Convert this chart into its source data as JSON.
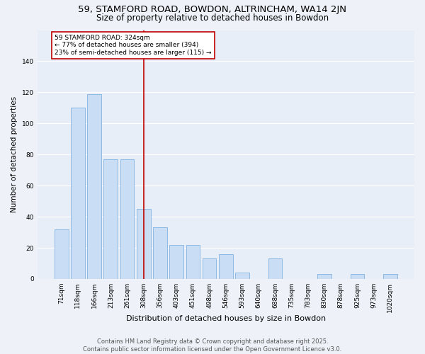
{
  "title": "59, STAMFORD ROAD, BOWDON, ALTRINCHAM, WA14 2JN",
  "subtitle": "Size of property relative to detached houses in Bowdon",
  "xlabel": "Distribution of detached houses by size in Bowdon",
  "ylabel": "Number of detached properties",
  "categories": [
    "71sqm",
    "118sqm",
    "166sqm",
    "213sqm",
    "261sqm",
    "308sqm",
    "356sqm",
    "403sqm",
    "451sqm",
    "498sqm",
    "546sqm",
    "593sqm",
    "640sqm",
    "688sqm",
    "735sqm",
    "783sqm",
    "830sqm",
    "878sqm",
    "925sqm",
    "973sqm",
    "1020sqm"
  ],
  "values": [
    32,
    110,
    119,
    77,
    77,
    45,
    33,
    22,
    22,
    13,
    16,
    4,
    0,
    13,
    0,
    0,
    3,
    0,
    3,
    0,
    3
  ],
  "bar_color": "#c9ddf5",
  "bar_edge_color": "#6fa8dc",
  "vline_color": "#c00000",
  "annotation_text": "59 STAMFORD ROAD: 324sqm\n← 77% of detached houses are smaller (394)\n23% of semi-detached houses are larger (115) →",
  "annotation_box_color": "#ffffff",
  "annotation_box_edge": "#c00000",
  "ylim": [
    0,
    160
  ],
  "yticks": [
    0,
    20,
    40,
    60,
    80,
    100,
    120,
    140
  ],
  "footer": "Contains HM Land Registry data © Crown copyright and database right 2025.\nContains public sector information licensed under the Open Government Licence v3.0.",
  "bg_color": "#eef2f8",
  "plot_bg_color": "#e8eef8",
  "grid_color": "#ffffff",
  "title_fontsize": 9.5,
  "subtitle_fontsize": 8.5,
  "axis_label_fontsize": 7.5,
  "tick_fontsize": 6.5,
  "footer_fontsize": 6.0,
  "vline_index": 5
}
